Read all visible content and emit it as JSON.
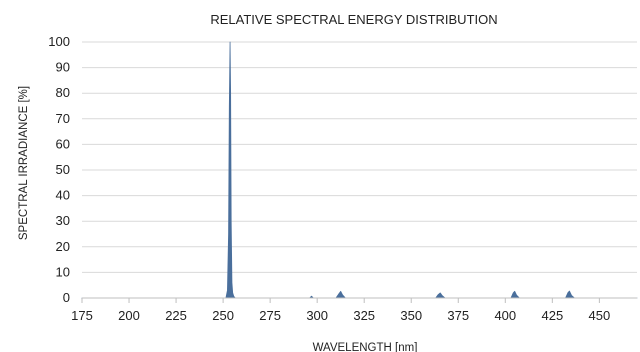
{
  "chart_data": {
    "type": "area",
    "title": "RELATIVE SPECTRAL ENERGY DISTRIBUTION",
    "xlabel": "WAVELENGTH [nm]",
    "ylabel": "SPECTRAL IRRADIANCE [%]",
    "xlim": [
      175,
      470
    ],
    "ylim": [
      0,
      100
    ],
    "x_ticks": [
      175,
      200,
      225,
      250,
      275,
      300,
      325,
      350,
      375,
      400,
      425,
      450
    ],
    "y_ticks": [
      0,
      10,
      20,
      30,
      40,
      50,
      60,
      70,
      80,
      90,
      100
    ],
    "grid": true,
    "legend": "none",
    "series": [
      {
        "color": "#4a6f9c",
        "x": [
          175,
          251.5,
          252.3,
          252.9,
          253.3,
          253.7,
          254.0,
          254.3,
          254.7,
          255.1,
          255.7,
          256.5,
          296,
          297,
          298,
          310,
          311.5,
          312.5,
          313.5,
          315,
          363,
          364.3,
          365.4,
          366.5,
          368,
          403,
          404.2,
          405,
          406,
          407.5,
          432,
          433.3,
          434.1,
          435.2,
          436.8,
          470
        ],
        "values": [
          0,
          0,
          3,
          25,
          75,
          100,
          80,
          30,
          6,
          2,
          0.6,
          0,
          0,
          0.7,
          0,
          0,
          1.6,
          2.6,
          1.2,
          0,
          0,
          1.3,
          2.0,
          0.9,
          0,
          0,
          2.0,
          2.6,
          1.1,
          0,
          0,
          2.1,
          2.7,
          1.0,
          0,
          0
        ]
      }
    ]
  }
}
